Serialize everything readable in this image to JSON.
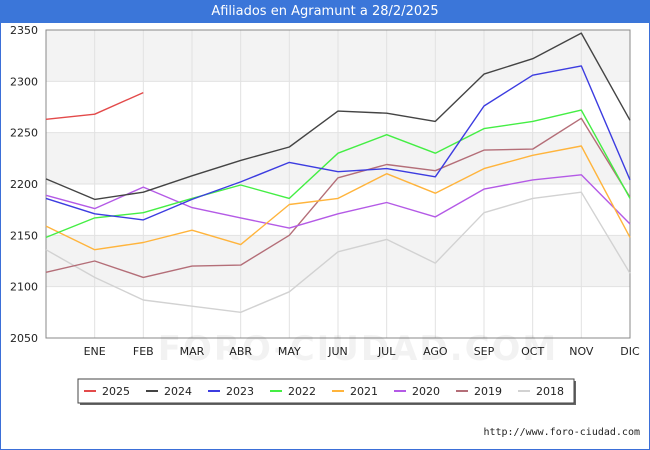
{
  "title": "Afiliados en Agramunt a 28/2/2025",
  "credit": "http://www.foro-ciudad.com",
  "watermark": "FORO-CIUDAD.COM",
  "chart_data": {
    "type": "line",
    "categories": [
      "",
      "ENE",
      "FEB",
      "MAR",
      "ABR",
      "MAY",
      "JUN",
      "JUL",
      "AGO",
      "SEP",
      "OCT",
      "NOV",
      "DIC"
    ],
    "ylim": [
      2050,
      2350
    ],
    "yticks": [
      2050,
      2100,
      2150,
      2200,
      2250,
      2300,
      2350
    ],
    "grid": true,
    "legend": "bottom",
    "series": [
      {
        "name": "2025",
        "color": "#e34a4a",
        "values": [
          2263,
          2268,
          2289,
          null,
          null,
          null,
          null,
          null,
          null,
          null,
          null,
          null,
          null
        ]
      },
      {
        "name": "2024",
        "color": "#444444",
        "values": [
          2205,
          2185,
          2192,
          2208,
          2223,
          2236,
          2271,
          2269,
          2261,
          2307,
          2322,
          2347,
          2262
        ]
      },
      {
        "name": "2023",
        "color": "#3c3ce0",
        "values": [
          2186,
          2171,
          2165,
          2185,
          2202,
          2221,
          2212,
          2215,
          2207,
          2276,
          2306,
          2315,
          2204
        ]
      },
      {
        "name": "2022",
        "color": "#44ee44",
        "values": [
          2148,
          2167,
          2172,
          2186,
          2199,
          2186,
          2230,
          2248,
          2230,
          2254,
          2261,
          2272,
          2186
        ]
      },
      {
        "name": "2021",
        "color": "#ffb43c",
        "values": [
          2159,
          2136,
          2143,
          2155,
          2141,
          2180,
          2186,
          2210,
          2191,
          2215,
          2228,
          2237,
          2148
        ]
      },
      {
        "name": "2020",
        "color": "#b45ae6",
        "values": [
          2189,
          2176,
          2197,
          2177,
          2167,
          2157,
          2171,
          2182,
          2168,
          2195,
          2204,
          2209,
          2161
        ]
      },
      {
        "name": "2019",
        "color": "#b46e78",
        "values": [
          2114,
          2125,
          2109,
          2120,
          2121,
          2150,
          2206,
          2219,
          2213,
          2233,
          2234,
          2264,
          2187
        ]
      },
      {
        "name": "2018",
        "color": "#d2d2d2",
        "values": [
          2136,
          2109,
          2087,
          2081,
          2075,
          2095,
          2134,
          2146,
          2123,
          2172,
          2186,
          2192,
          2113
        ]
      }
    ]
  }
}
